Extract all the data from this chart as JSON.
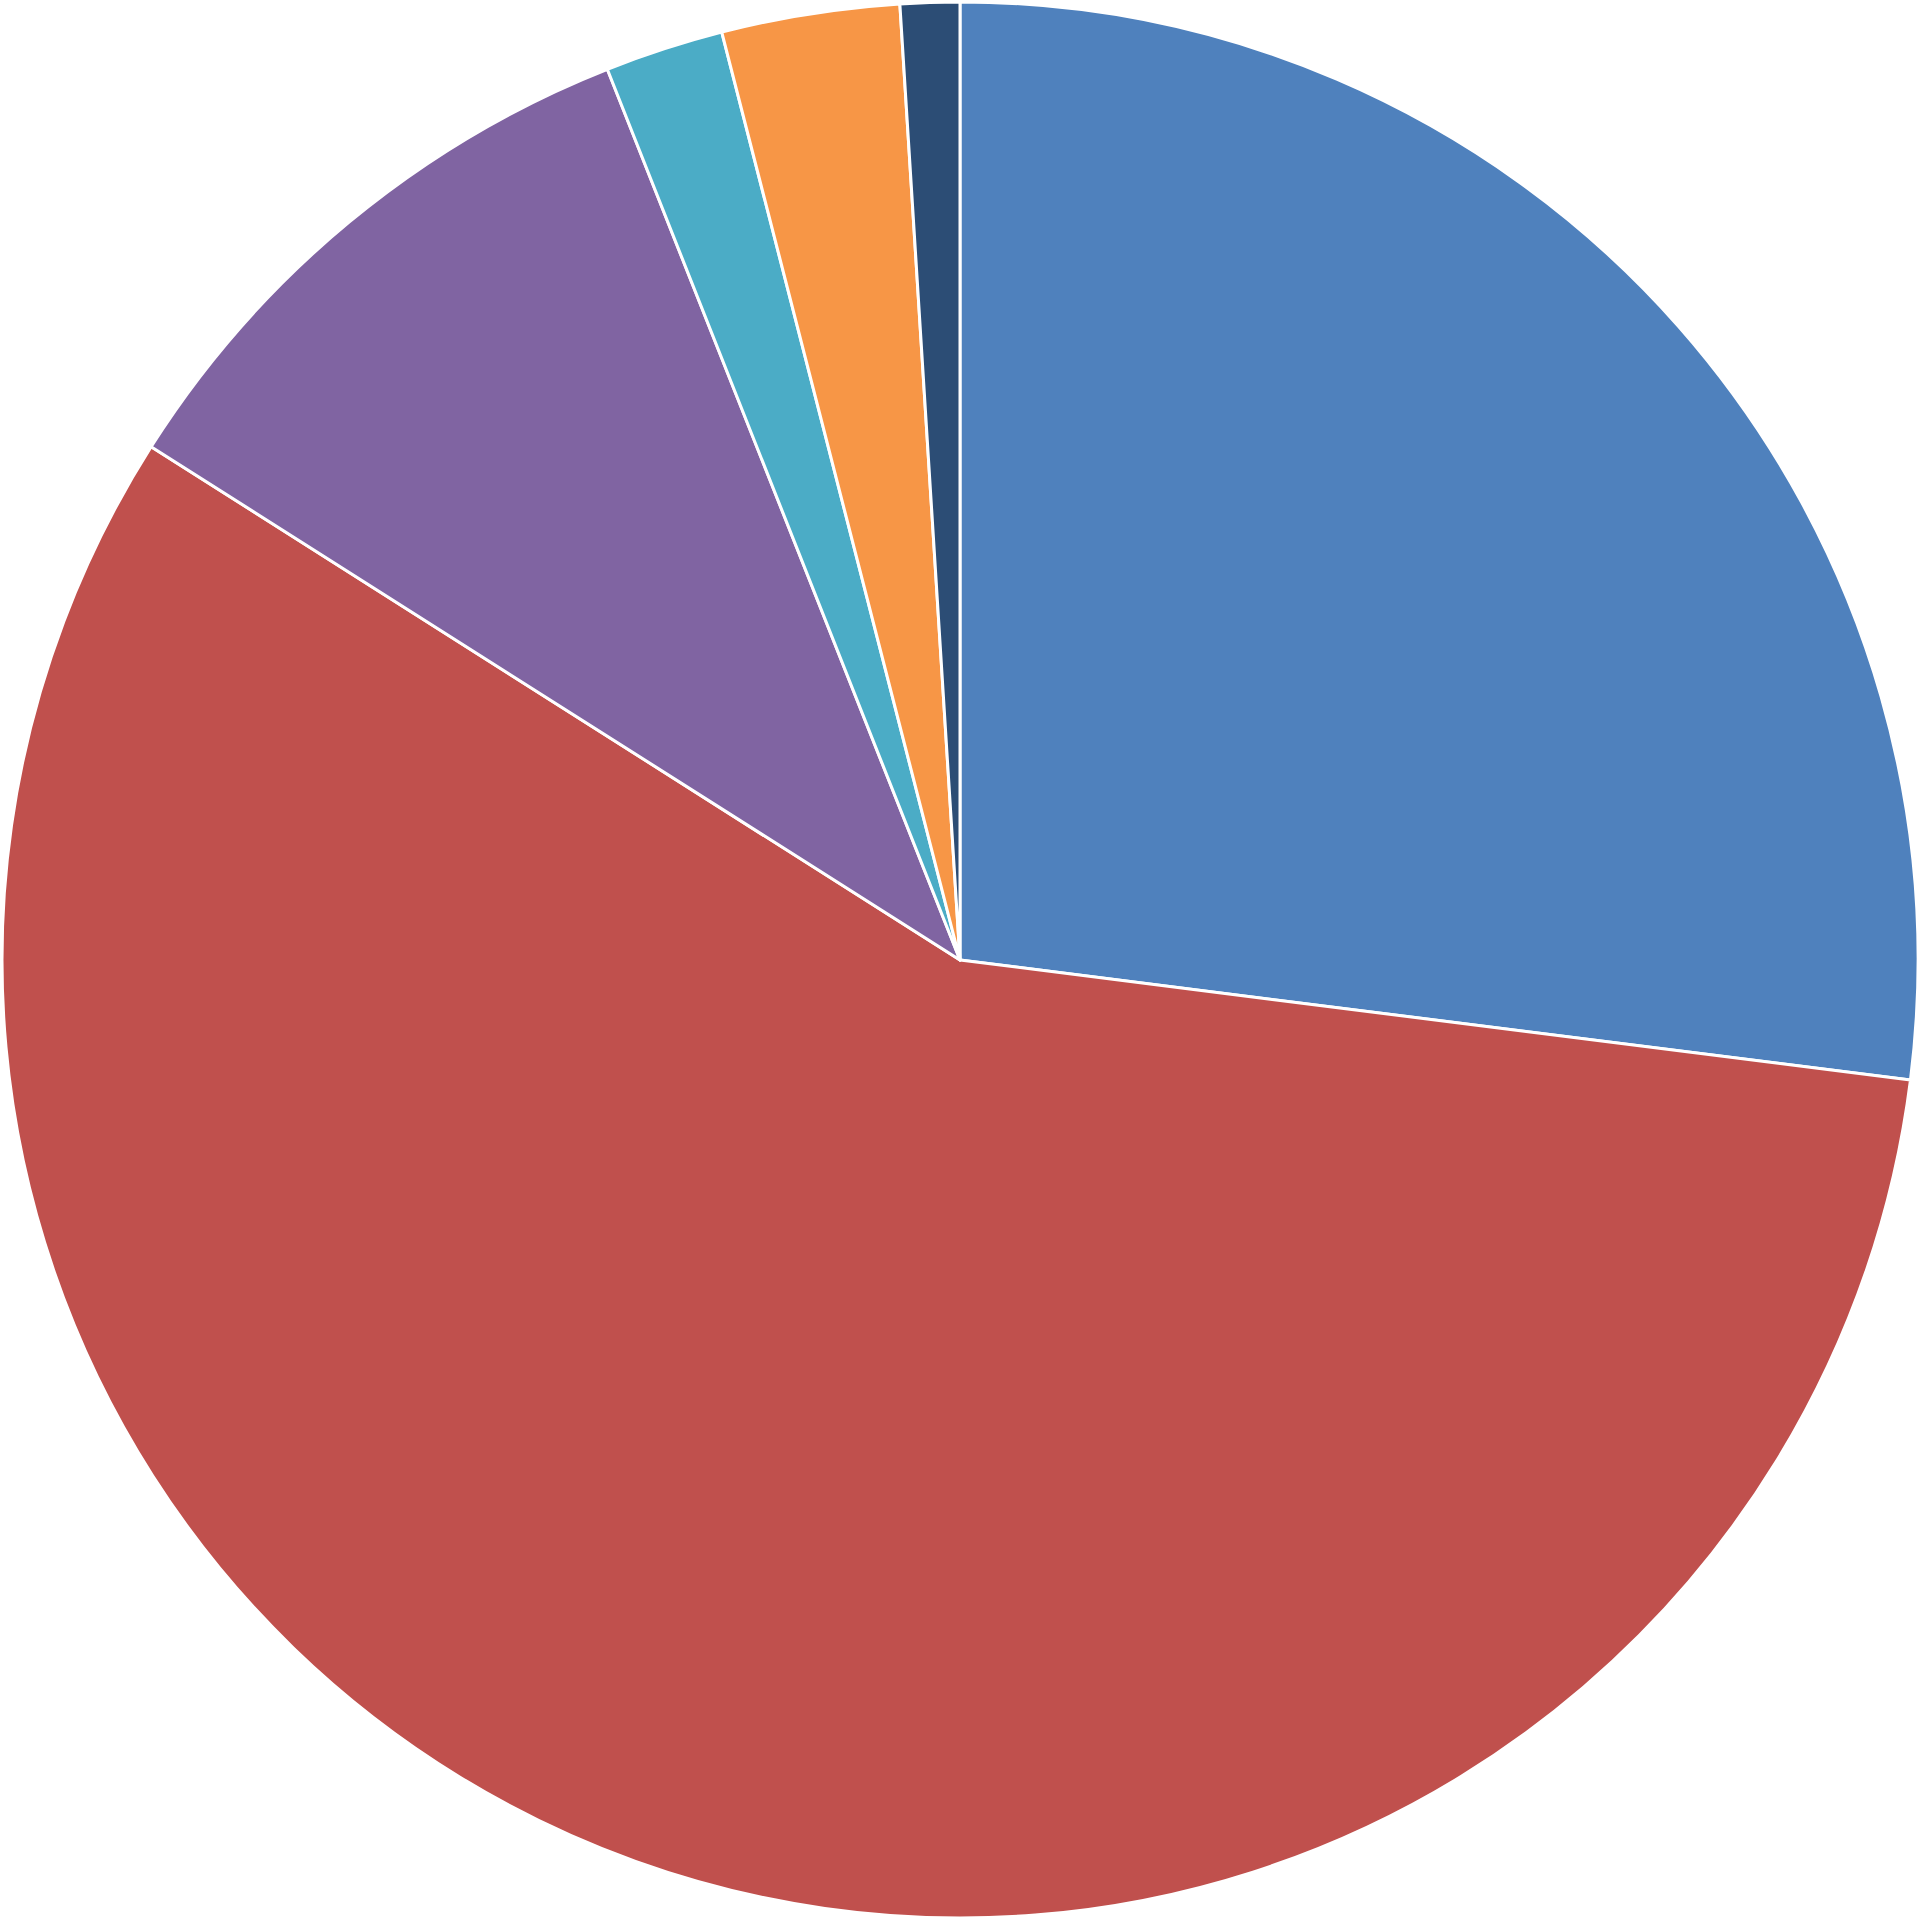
{
  "chart_data": {
    "type": "pie",
    "categories": [
      null,
      null,
      null,
      null,
      null,
      null
    ],
    "values": [
      27,
      57,
      10,
      2,
      3,
      1
    ],
    "colors": [
      "#4f81bd",
      "#c0504d",
      "#8064a2",
      "#4bacc6",
      "#f79646",
      "#2c4d75"
    ],
    "legend": false
  }
}
